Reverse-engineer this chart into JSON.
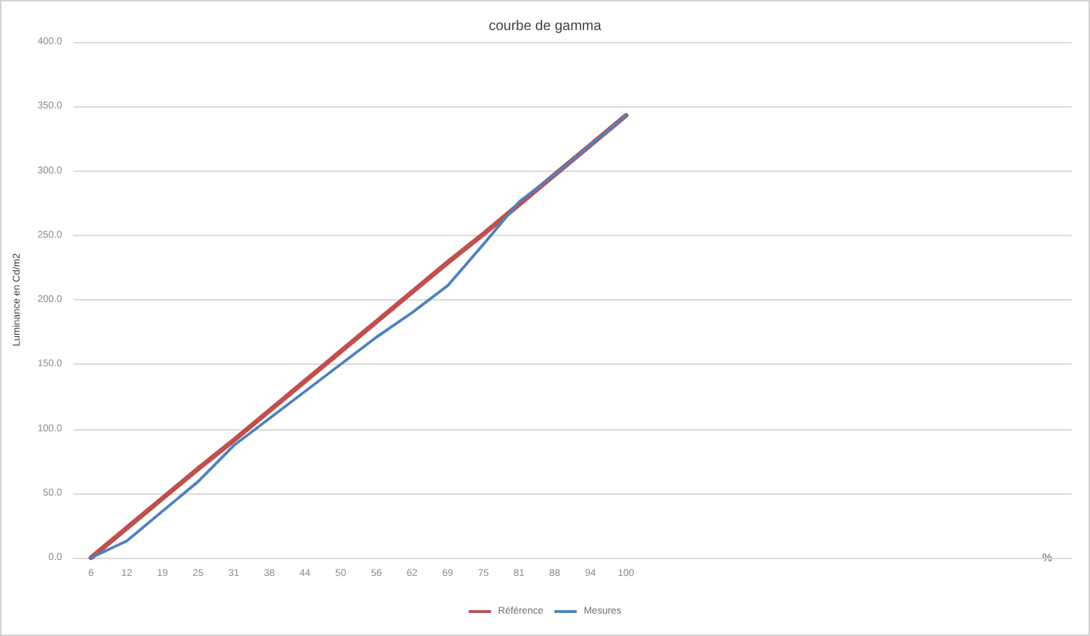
{
  "chart_data": {
    "type": "line",
    "title": "courbe de gamma",
    "xlabel": "%",
    "ylabel": "Luminance en Cd/m2",
    "categories": [
      "6",
      "12",
      "19",
      "25",
      "31",
      "38",
      "44",
      "50",
      "56",
      "62",
      "69",
      "75",
      "81",
      "88",
      "94",
      "100",
      null,
      null,
      null,
      null,
      null,
      null,
      null,
      null,
      null,
      null,
      null,
      null
    ],
    "series": [
      {
        "name": "Référence",
        "color": "#c0504d",
        "values": [
          0,
          23,
          46,
          69,
          91,
          114,
          137,
          160,
          183,
          206,
          229,
          251,
          274,
          297,
          320,
          343,
          null,
          null,
          null,
          null,
          null,
          null,
          null,
          null,
          null,
          null,
          null,
          null
        ]
      },
      {
        "name": "Mesures",
        "color": "#4f81bd",
        "values": [
          0,
          13,
          36,
          59,
          87,
          108,
          129,
          150,
          171,
          190,
          211,
          243,
          276,
          297,
          320,
          343,
          null,
          null,
          null,
          null,
          null,
          null,
          null,
          null,
          null,
          null,
          null,
          null
        ]
      }
    ],
    "ylim": [
      0,
      400
    ],
    "yticks": [
      {
        "value": 0,
        "label": "0.0"
      },
      {
        "value": 50,
        "label": "50.0"
      },
      {
        "value": 100,
        "label": "100.0"
      },
      {
        "value": 150,
        "label": "150.0"
      },
      {
        "value": 200,
        "label": "200.0"
      },
      {
        "value": 250,
        "label": "250.0"
      },
      {
        "value": 300,
        "label": "300.0"
      },
      {
        "value": 350,
        "label": "350.0"
      },
      {
        "value": 400,
        "label": "400.0"
      }
    ],
    "grid": "y",
    "legend": "bottom",
    "marker": "none",
    "line_style": "solid"
  }
}
